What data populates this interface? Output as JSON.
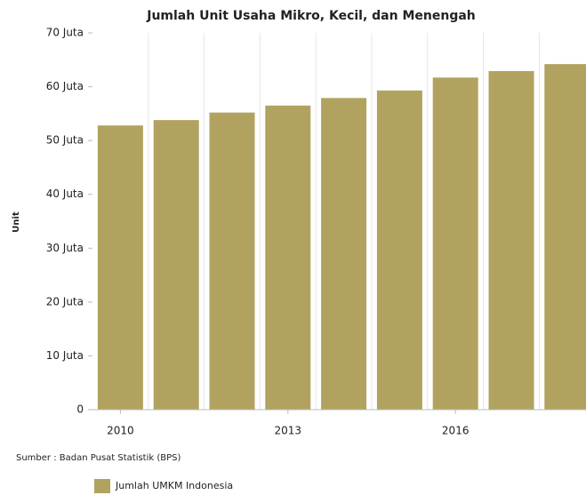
{
  "chart_data": {
    "type": "bar",
    "title": "Jumlah Unit Usaha Mikro, Kecil, dan Menengah",
    "y_label": "Unit",
    "source": "Sumber : Badan Pusat Statistik (BPS)",
    "categories": [
      "2010",
      null,
      null,
      "2013",
      null,
      null,
      "2016",
      null,
      null
    ],
    "series": [
      {
        "name": "Jumlah UMKM Indonesia",
        "color": "#b1a35f",
        "values": [
          52.8,
          53.8,
          55.2,
          56.5,
          57.9,
          59.3,
          61.7,
          62.9,
          64.2
        ]
      }
    ],
    "ylim": [
      0,
      70
    ],
    "yticks": [
      0,
      {
        "value": 10,
        "label": "10 Juta"
      },
      {
        "value": 20,
        "label": "20 Juta"
      },
      {
        "value": 30,
        "label": "30 Juta"
      },
      {
        "value": 40,
        "label": "40 Juta"
      },
      {
        "value": 50,
        "label": "50 Juta"
      },
      {
        "value": 60,
        "label": "60 Juta"
      },
      {
        "value": 70,
        "label": "70 Juta"
      }
    ],
    "grid": true
  }
}
